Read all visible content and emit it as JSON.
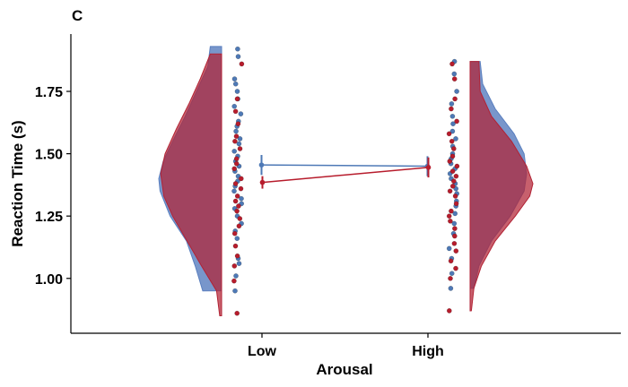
{
  "panel_label": "C",
  "colors": {
    "low": "#4e79b6",
    "high": "#b71c2c",
    "violin_low": "#5a7fbf",
    "violin_high": "#b22234"
  },
  "chart_data": {
    "type": "raincloud",
    "xlabel": "Arousal",
    "ylabel": "Reaction Time (s)",
    "categories": [
      "Low",
      "High"
    ],
    "ylim": [
      0.78,
      1.98
    ],
    "yticks": [
      1.0,
      1.25,
      1.5,
      1.75
    ],
    "ytick_labels": [
      "1.00",
      "1.25",
      "1.50",
      "1.75"
    ],
    "grid": false,
    "means": [
      {
        "arousal": "Low",
        "color_series": "blue",
        "mean": 1.455,
        "lower": 1.415,
        "upper": 1.495
      },
      {
        "arousal": "Low",
        "color_series": "red",
        "mean": 1.385,
        "lower": 1.36,
        "upper": 1.41
      },
      {
        "arousal": "High",
        "color_series": "blue",
        "mean": 1.45,
        "lower": 1.41,
        "upper": 1.49
      },
      {
        "arousal": "High",
        "color_series": "red",
        "mean": 1.445,
        "lower": 1.405,
        "upper": 1.485
      }
    ],
    "points": {
      "Low": {
        "blue": [
          1.92,
          1.89,
          1.8,
          1.78,
          1.75,
          1.72,
          1.69,
          1.66,
          1.63,
          1.61,
          1.59,
          1.56,
          1.54,
          1.51,
          1.49,
          1.47,
          1.45,
          1.43,
          1.41,
          1.39,
          1.37,
          1.35,
          1.32,
          1.3,
          1.28,
          1.25,
          1.22,
          1.19,
          1.16,
          1.08,
          1.06,
          1.01,
          0.95
        ],
        "red": [
          1.86,
          1.72,
          1.67,
          1.62,
          1.57,
          1.55,
          1.52,
          1.48,
          1.46,
          1.44,
          1.4,
          1.38,
          1.36,
          1.33,
          1.31,
          1.29,
          1.27,
          1.24,
          1.21,
          1.18,
          1.13,
          1.09,
          1.05,
          0.99,
          0.86
        ]
      },
      "High": {
        "blue": [
          1.87,
          1.82,
          1.75,
          1.7,
          1.65,
          1.62,
          1.59,
          1.56,
          1.53,
          1.5,
          1.48,
          1.46,
          1.44,
          1.42,
          1.4,
          1.38,
          1.36,
          1.34,
          1.31,
          1.29,
          1.26,
          1.22,
          1.18,
          1.12,
          1.08,
          1.02,
          0.96
        ],
        "red": [
          1.86,
          1.8,
          1.72,
          1.68,
          1.63,
          1.58,
          1.55,
          1.52,
          1.49,
          1.47,
          1.45,
          1.43,
          1.41,
          1.39,
          1.37,
          1.35,
          1.33,
          1.3,
          1.27,
          1.25,
          1.23,
          1.2,
          1.17,
          1.14,
          1.11,
          1.07,
          1.04,
          1.0,
          0.87
        ]
      }
    },
    "densities": {
      "Low": {
        "blue": {
          "ymin": 0.95,
          "ymax": 1.93,
          "levels": [
            [
              0.95,
              0.3
            ],
            [
              1.05,
              0.42
            ],
            [
              1.15,
              0.56
            ],
            [
              1.25,
              0.82
            ],
            [
              1.35,
              0.98
            ],
            [
              1.4,
              1.0
            ],
            [
              1.47,
              0.93
            ],
            [
              1.55,
              0.78
            ],
            [
              1.65,
              0.58
            ],
            [
              1.75,
              0.4
            ],
            [
              1.85,
              0.22
            ],
            [
              1.93,
              0.18
            ]
          ]
        },
        "red": {
          "ymin": 0.85,
          "ymax": 1.9,
          "levels": [
            [
              0.85,
              0.03
            ],
            [
              0.95,
              0.08
            ],
            [
              1.05,
              0.32
            ],
            [
              1.15,
              0.55
            ],
            [
              1.25,
              0.78
            ],
            [
              1.33,
              0.92
            ],
            [
              1.42,
              0.97
            ],
            [
              1.5,
              0.9
            ],
            [
              1.6,
              0.72
            ],
            [
              1.7,
              0.52
            ],
            [
              1.8,
              0.34
            ],
            [
              1.9,
              0.18
            ]
          ]
        }
      },
      "High": {
        "blue": {
          "ymin": 0.96,
          "ymax": 1.87,
          "levels": [
            [
              0.96,
              0.06
            ],
            [
              1.05,
              0.14
            ],
            [
              1.15,
              0.34
            ],
            [
              1.25,
              0.64
            ],
            [
              1.35,
              0.86
            ],
            [
              1.42,
              0.9
            ],
            [
              1.5,
              0.86
            ],
            [
              1.58,
              0.7
            ],
            [
              1.68,
              0.4
            ],
            [
              1.78,
              0.2
            ],
            [
              1.87,
              0.16
            ]
          ]
        },
        "red": {
          "ymin": 0.87,
          "ymax": 1.87,
          "levels": [
            [
              0.87,
              0.02
            ],
            [
              0.96,
              0.06
            ],
            [
              1.05,
              0.18
            ],
            [
              1.15,
              0.4
            ],
            [
              1.25,
              0.72
            ],
            [
              1.33,
              0.95
            ],
            [
              1.38,
              1.0
            ],
            [
              1.45,
              0.9
            ],
            [
              1.55,
              0.66
            ],
            [
              1.65,
              0.34
            ],
            [
              1.75,
              0.16
            ],
            [
              1.87,
              0.14
            ]
          ]
        }
      }
    }
  }
}
